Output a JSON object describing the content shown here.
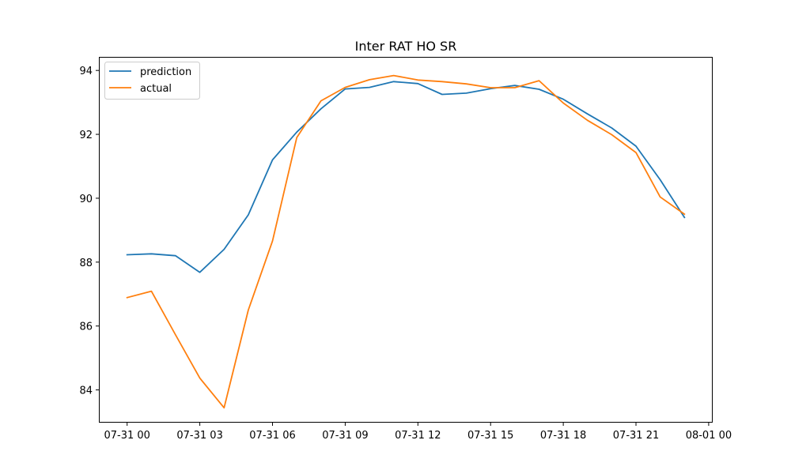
{
  "chart_data": {
    "type": "line",
    "title": "Inter RAT HO SR",
    "xlabel": "",
    "ylabel": "",
    "x": [
      "07-31 00:00",
      "07-31 01:00",
      "07-31 02:00",
      "07-31 03:00",
      "07-31 04:00",
      "07-31 05:00",
      "07-31 06:00",
      "07-31 07:00",
      "07-31 08:00",
      "07-31 09:00",
      "07-31 10:00",
      "07-31 11:00",
      "07-31 12:00",
      "07-31 13:00",
      "07-31 14:00",
      "07-31 15:00",
      "07-31 16:00",
      "07-31 17:00",
      "07-31 18:00",
      "07-31 19:00",
      "07-31 20:00",
      "07-31 21:00",
      "07-31 22:00",
      "07-31 23:00"
    ],
    "x_ticks": [
      "07-31 00",
      "07-31 03",
      "07-31 06",
      "07-31 09",
      "07-31 12",
      "07-31 15",
      "07-31 18",
      "07-31 21",
      "08-01 00"
    ],
    "xlim": [
      "07-30 22:52",
      "08-01 00:08"
    ],
    "y_ticks": [
      84,
      86,
      88,
      90,
      92,
      94
    ],
    "ylim": [
      83.0,
      94.4
    ],
    "grid": false,
    "legend_position": "upper-left",
    "series": [
      {
        "name": "prediction",
        "color": "#1f77b4",
        "values": [
          88.23,
          88.26,
          88.2,
          87.68,
          88.4,
          89.48,
          91.2,
          92.07,
          92.8,
          93.42,
          93.47,
          93.65,
          93.59,
          93.25,
          93.29,
          93.43,
          93.53,
          93.41,
          93.1,
          92.64,
          92.2,
          91.63,
          90.58,
          89.4
        ]
      },
      {
        "name": "actual",
        "color": "#ff7f0e",
        "values": [
          86.89,
          87.09,
          85.72,
          84.37,
          83.44,
          86.5,
          88.66,
          91.9,
          93.05,
          93.47,
          93.71,
          93.84,
          93.7,
          93.65,
          93.58,
          93.46,
          93.46,
          93.68,
          92.98,
          92.44,
          91.99,
          91.43,
          90.04,
          89.5
        ]
      }
    ]
  }
}
